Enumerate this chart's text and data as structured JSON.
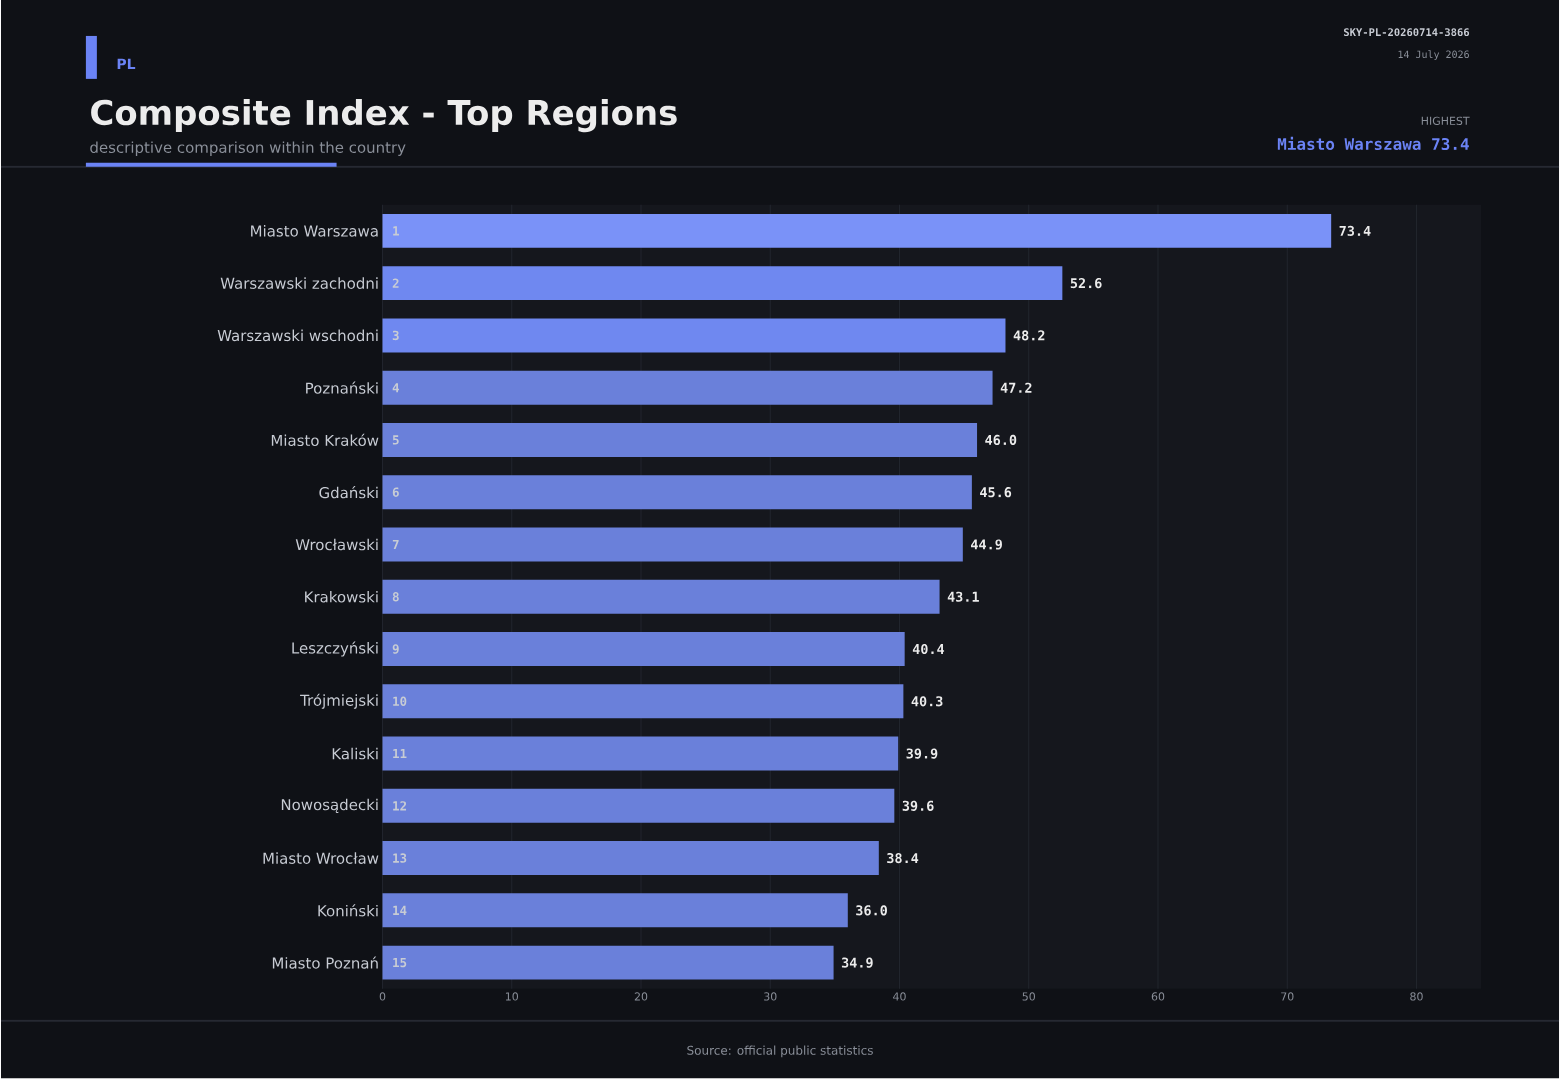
{
  "chart_data": {
    "type": "bar",
    "orientation": "horizontal",
    "title": "Composite Index - Top Regions",
    "subtitle": "descriptive comparison within the country",
    "categories": [
      "Miasto Warszawa",
      "Warszawski zachodni",
      "Warszawski wschodni",
      "Poznański",
      "Miasto Kraków",
      "Gdański",
      "Wrocławski",
      "Krakowski",
      "Leszczyński",
      "Trójmiejski",
      "Kaliski",
      "Nowosądecki",
      "Miasto Wrocław",
      "Koniński",
      "Miasto Poznań"
    ],
    "values": [
      73.4,
      52.6,
      48.2,
      47.2,
      46.0,
      45.6,
      44.9,
      43.1,
      40.4,
      40.3,
      39.9,
      39.6,
      38.4,
      36.0,
      34.9
    ],
    "value_labels": [
      "73.4",
      "52.6",
      "48.2",
      "47.2",
      "46.0",
      "45.6",
      "44.9",
      "43.1",
      "40.4",
      "40.3",
      "39.9",
      "39.6",
      "38.4",
      "36.0",
      "34.9"
    ],
    "colors": [
      "#7a92f8",
      "#6f88f0",
      "#6f88f0",
      "#6a80da",
      "#6a80da",
      "#6a80da",
      "#6a80da",
      "#6a80da",
      "#6a80da",
      "#6a80da",
      "#6a80da",
      "#6a80da",
      "#6a80da",
      "#6a80da",
      "#6a80da"
    ],
    "xlim": [
      0,
      85
    ],
    "xticks": [
      0,
      10,
      20,
      30,
      40,
      50,
      60,
      70,
      80
    ],
    "grid": "x",
    "annotations": [
      "PL",
      "SKY-PL-20260714-3866",
      "14 July 2026",
      "HIGHEST",
      "Miasto Warszawa  73.4",
      "Source: official public statistics",
      {
        "text": "1",
        "y": "Miasto Warszawa"
      },
      {
        "text": "2",
        "y": "Warszawski zachodni"
      },
      {
        "text": "3",
        "y": "Warszawski wschodni"
      },
      {
        "text": "4",
        "y": "Poznański"
      },
      {
        "text": "5",
        "y": "Miasto Kraków"
      },
      {
        "text": "6",
        "y": "Gdański"
      },
      {
        "text": "7",
        "y": "Wrocławski"
      },
      {
        "text": "8",
        "y": "Krakowski"
      },
      {
        "text": "9",
        "y": "Leszczyński"
      },
      {
        "text": "10",
        "y": "Trójmiejski"
      },
      {
        "text": "11",
        "y": "Kaliski"
      },
      {
        "text": "12",
        "y": "Nowosądecki"
      },
      {
        "text": "13",
        "y": "Miasto Wrocław"
      },
      {
        "text": "14",
        "y": "Koniński"
      },
      {
        "text": "15",
        "y": "Miasto Poznań"
      }
    ]
  }
}
